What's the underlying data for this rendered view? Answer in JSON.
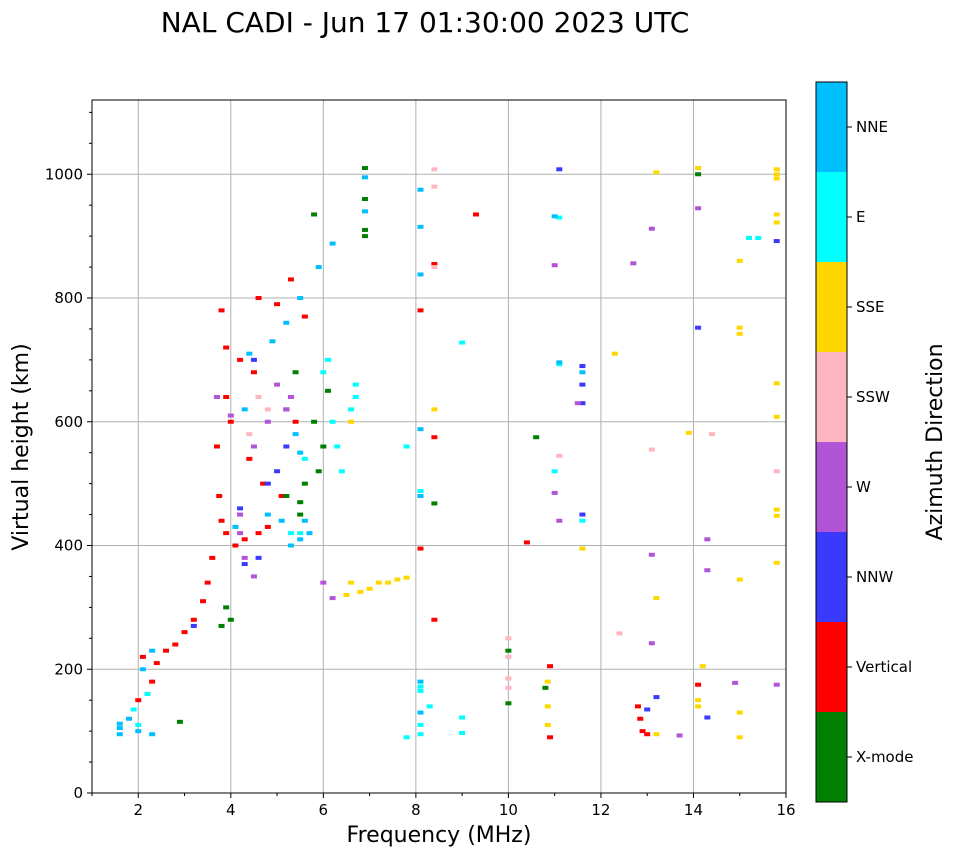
{
  "chart_data": {
    "type": "scatter",
    "title": "NAL CADI - Jun 17 01:30:00 2023 UTC",
    "xlabel": "Frequency (MHz)",
    "ylabel": "Virtual height (km)",
    "xlim": [
      1,
      16
    ],
    "ylim": [
      0,
      1120
    ],
    "xticks": [
      2,
      4,
      6,
      8,
      10,
      12,
      14,
      16
    ],
    "yticks": [
      0,
      200,
      400,
      600,
      800,
      1000
    ],
    "grid": true,
    "colorbar": {
      "title": "Azimuth Direction",
      "categories": [
        "X-mode",
        "Vertical",
        "NNW",
        "W",
        "SSW",
        "SSE",
        "E",
        "NNE"
      ],
      "colors": [
        "#008000",
        "#ff0000",
        "#3a3aff",
        "#b154d6",
        "#ffb6c1",
        "#ffd700",
        "#00ffff",
        "#00bfff"
      ]
    },
    "series": [
      {
        "name": "Vertical",
        "points": [
          [
            3.8,
            780
          ],
          [
            3.9,
            720
          ],
          [
            4.2,
            700
          ],
          [
            4.5,
            680
          ],
          [
            3.7,
            560
          ],
          [
            3.75,
            480
          ],
          [
            3.8,
            440
          ],
          [
            3.9,
            420
          ],
          [
            4.1,
            400
          ],
          [
            4.3,
            410
          ],
          [
            4.6,
            420
          ],
          [
            4.8,
            430
          ],
          [
            3.6,
            380
          ],
          [
            3.5,
            340
          ],
          [
            3.4,
            310
          ],
          [
            3.2,
            280
          ],
          [
            3.0,
            260
          ],
          [
            2.8,
            240
          ],
          [
            2.6,
            230
          ],
          [
            2.4,
            210
          ],
          [
            2.3,
            180
          ],
          [
            2.1,
            220
          ],
          [
            2.0,
            150
          ],
          [
            4.6,
            800
          ],
          [
            5.0,
            790
          ],
          [
            5.3,
            830
          ],
          [
            5.6,
            770
          ],
          [
            5.4,
            600
          ],
          [
            8.1,
            780
          ],
          [
            8.1,
            395
          ],
          [
            8.4,
            575
          ],
          [
            8.4,
            855
          ],
          [
            8.4,
            280
          ],
          [
            9.3,
            935
          ],
          [
            10.4,
            405
          ],
          [
            10.9,
            205
          ],
          [
            10.9,
            90
          ],
          [
            12.8,
            140
          ],
          [
            12.85,
            120
          ],
          [
            12.9,
            100
          ],
          [
            14.1,
            175
          ],
          [
            13.0,
            95
          ],
          [
            3.9,
            640
          ],
          [
            4.0,
            600
          ],
          [
            4.4,
            540
          ],
          [
            4.7,
            500
          ],
          [
            5.1,
            480
          ]
        ]
      },
      {
        "name": "X-mode",
        "points": [
          [
            6.9,
            1010
          ],
          [
            6.9,
            960
          ],
          [
            6.9,
            910
          ],
          [
            6.9,
            900
          ],
          [
            5.8,
            600
          ],
          [
            6.0,
            560
          ],
          [
            5.9,
            520
          ],
          [
            5.6,
            500
          ],
          [
            5.5,
            470
          ],
          [
            6.1,
            650
          ],
          [
            5.2,
            480
          ],
          [
            3.9,
            300
          ],
          [
            4.0,
            280
          ],
          [
            3.8,
            270
          ],
          [
            10.0,
            230
          ],
          [
            10.0,
            145
          ],
          [
            10.8,
            170
          ],
          [
            10.6,
            575
          ],
          [
            8.4,
            468
          ],
          [
            14.1,
            1000
          ],
          [
            5.8,
            935
          ],
          [
            2.9,
            115
          ],
          [
            5.4,
            680
          ],
          [
            5.5,
            450
          ]
        ]
      },
      {
        "name": "NNW",
        "points": [
          [
            4.5,
            700
          ],
          [
            5.2,
            560
          ],
          [
            5.0,
            520
          ],
          [
            4.8,
            500
          ],
          [
            4.6,
            380
          ],
          [
            4.3,
            370
          ],
          [
            11.1,
            1008
          ],
          [
            11.6,
            690
          ],
          [
            11.6,
            660
          ],
          [
            11.6,
            630
          ],
          [
            11.6,
            450
          ],
          [
            14.1,
            752
          ],
          [
            14.3,
            122
          ],
          [
            15.8,
            892
          ],
          [
            13.2,
            155
          ],
          [
            13.0,
            135
          ],
          [
            5.2,
            620
          ],
          [
            4.2,
            460
          ],
          [
            3.2,
            270
          ]
        ]
      },
      {
        "name": "W",
        "points": [
          [
            4.2,
            450
          ],
          [
            4.5,
            560
          ],
          [
            5.2,
            620
          ],
          [
            4.8,
            600
          ],
          [
            4.0,
            610
          ],
          [
            4.5,
            350
          ],
          [
            4.3,
            380
          ],
          [
            4.2,
            420
          ],
          [
            5.0,
            660
          ],
          [
            5.3,
            640
          ],
          [
            6.0,
            340
          ],
          [
            6.2,
            315
          ],
          [
            12.7,
            856
          ],
          [
            14.1,
            945
          ],
          [
            13.1,
            912
          ],
          [
            14.3,
            410
          ],
          [
            14.3,
            360
          ],
          [
            11.5,
            630
          ],
          [
            13.1,
            385
          ],
          [
            13.1,
            242
          ],
          [
            13.7,
            93
          ],
          [
            15.8,
            175
          ],
          [
            11.0,
            485
          ],
          [
            11.1,
            440
          ],
          [
            11.0,
            853
          ],
          [
            14.9,
            178
          ],
          [
            3.7,
            640
          ]
        ]
      },
      {
        "name": "SSW",
        "points": [
          [
            4.6,
            640
          ],
          [
            4.8,
            620
          ],
          [
            4.4,
            580
          ],
          [
            10.0,
            250
          ],
          [
            10.0,
            220
          ],
          [
            10.0,
            185
          ],
          [
            10.0,
            170
          ],
          [
            8.4,
            980
          ],
          [
            8.4,
            1008
          ],
          [
            8.4,
            850
          ],
          [
            11.1,
            545
          ],
          [
            12.4,
            258
          ],
          [
            13.1,
            555
          ],
          [
            14.4,
            580
          ],
          [
            15.8,
            520
          ]
        ]
      },
      {
        "name": "SSE",
        "points": [
          [
            6.6,
            340
          ],
          [
            6.5,
            320
          ],
          [
            6.8,
            325
          ],
          [
            7.0,
            330
          ],
          [
            7.2,
            340
          ],
          [
            7.4,
            340
          ],
          [
            7.6,
            345
          ],
          [
            7.8,
            348
          ],
          [
            8.4,
            620
          ],
          [
            11.6,
            395
          ],
          [
            12.3,
            710
          ],
          [
            10.85,
            180
          ],
          [
            10.85,
            140
          ],
          [
            10.85,
            110
          ],
          [
            13.2,
            1003
          ],
          [
            14.1,
            1010
          ],
          [
            15.0,
            860
          ],
          [
            15.0,
            752
          ],
          [
            15.0,
            742
          ],
          [
            13.2,
            315
          ],
          [
            13.9,
            582
          ],
          [
            14.2,
            205
          ],
          [
            14.1,
            150
          ],
          [
            14.1,
            140
          ],
          [
            15.0,
            345
          ],
          [
            15.0,
            130
          ],
          [
            15.0,
            90
          ],
          [
            15.8,
            1008
          ],
          [
            15.8,
            1000
          ],
          [
            15.8,
            993
          ],
          [
            15.8,
            935
          ],
          [
            15.8,
            922
          ],
          [
            15.8,
            662
          ],
          [
            15.8,
            608
          ],
          [
            15.8,
            458
          ],
          [
            15.8,
            448
          ],
          [
            15.8,
            372
          ],
          [
            13.2,
            95
          ],
          [
            6.6,
            600
          ]
        ]
      },
      {
        "name": "E",
        "points": [
          [
            6.7,
            660
          ],
          [
            6.7,
            640
          ],
          [
            6.6,
            620
          ],
          [
            6.2,
            600
          ],
          [
            6.3,
            560
          ],
          [
            6.4,
            520
          ],
          [
            6.1,
            700
          ],
          [
            6.0,
            680
          ],
          [
            5.6,
            540
          ],
          [
            5.3,
            420
          ],
          [
            5.5,
            420
          ],
          [
            9.0,
            728
          ],
          [
            11.1,
            693
          ],
          [
            11.1,
            930
          ],
          [
            8.1,
            172
          ],
          [
            8.1,
            165
          ],
          [
            8.3,
            140
          ],
          [
            9.0,
            122
          ],
          [
            9.0,
            97
          ],
          [
            8.1,
            110
          ],
          [
            8.1,
            95
          ],
          [
            7.8,
            90
          ],
          [
            7.8,
            560
          ],
          [
            15.2,
            897
          ],
          [
            15.4,
            897
          ],
          [
            2.0,
            110
          ],
          [
            1.9,
            135
          ],
          [
            2.2,
            160
          ],
          [
            11.0,
            520
          ],
          [
            11.6,
            440
          ],
          [
            8.1,
            488
          ]
        ]
      },
      {
        "name": "NNE",
        "points": [
          [
            6.2,
            888
          ],
          [
            5.9,
            850
          ],
          [
            5.5,
            800
          ],
          [
            5.2,
            760
          ],
          [
            4.9,
            730
          ],
          [
            4.4,
            710
          ],
          [
            5.4,
            580
          ],
          [
            5.5,
            550
          ],
          [
            5.6,
            440
          ],
          [
            5.7,
            420
          ],
          [
            5.5,
            410
          ],
          [
            5.3,
            400
          ],
          [
            5.1,
            440
          ],
          [
            4.8,
            450
          ],
          [
            4.1,
            430
          ],
          [
            4.3,
            620
          ],
          [
            2.0,
            100
          ],
          [
            1.6,
            95
          ],
          [
            1.8,
            120
          ],
          [
            2.3,
            95
          ],
          [
            2.1,
            200
          ],
          [
            2.3,
            230
          ],
          [
            8.1,
            975
          ],
          [
            8.1,
            915
          ],
          [
            8.1,
            838
          ],
          [
            8.1,
            588
          ],
          [
            8.1,
            480
          ],
          [
            8.1,
            180
          ],
          [
            8.1,
            130
          ],
          [
            11.0,
            932
          ],
          [
            11.6,
            680
          ],
          [
            11.1,
            696
          ],
          [
            6.9,
            995
          ],
          [
            6.9,
            940
          ],
          [
            1.6,
            112
          ],
          [
            1.6,
            105
          ]
        ]
      }
    ]
  }
}
